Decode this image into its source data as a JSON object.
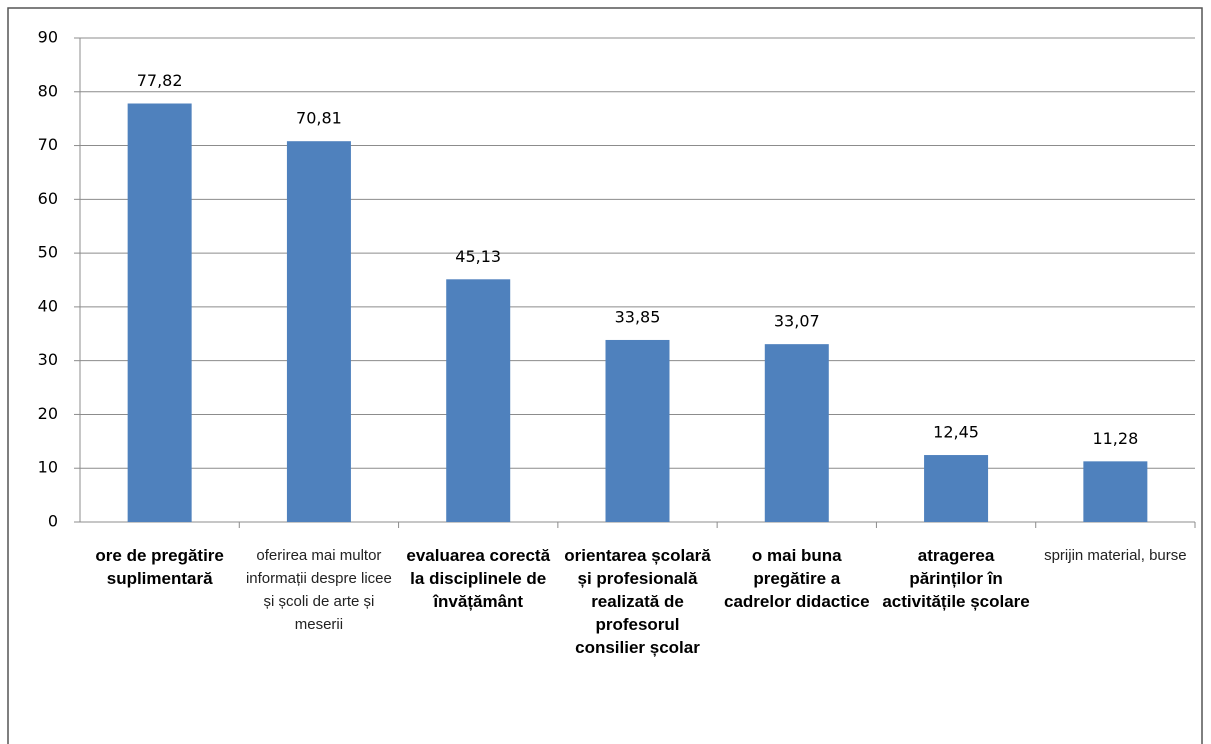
{
  "chart_data": {
    "type": "bar",
    "categories": [
      "ore de pregătire suplimentară",
      "oferirea mai multor informații despre licee și școli de arte și meserii",
      "evaluarea corectă la disciplinele de învățământ",
      "orientarea școlară și profesională realizată de profesorul consilier școlar",
      "o mai buna pregătire a cadrelor didactice",
      "atragerea părinților în activitățile școlare",
      "sprijin material, burse"
    ],
    "values": [
      77.82,
      70.81,
      45.13,
      33.85,
      33.07,
      12.45,
      11.28
    ],
    "value_labels": [
      "77,82",
      "70,81",
      "45,13",
      "33,85",
      "33,07",
      "12,45",
      "11,28"
    ],
    "color": "#4f81bd",
    "ylim": [
      0,
      90
    ],
    "yticks": [
      0,
      10,
      20,
      30,
      40,
      50,
      60,
      70,
      80,
      90
    ],
    "grid": true
  }
}
